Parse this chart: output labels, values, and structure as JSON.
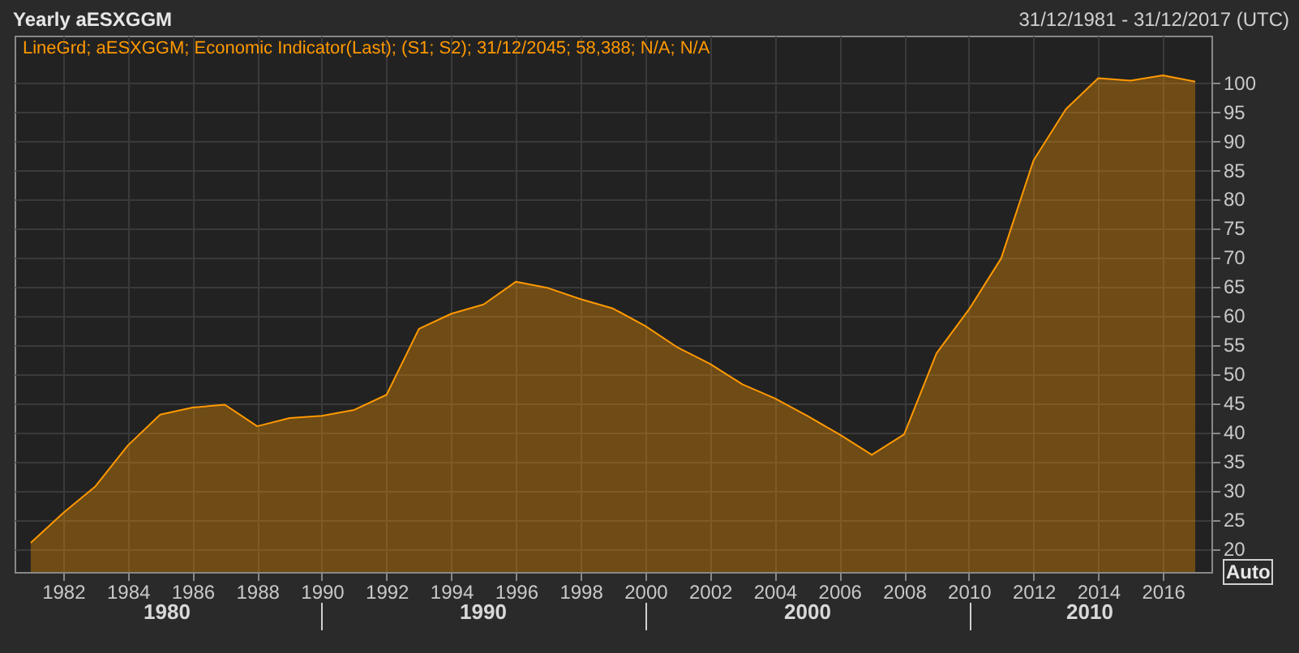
{
  "chart_data": {
    "type": "area",
    "title": "Yearly aESXGGM",
    "subtitle": "31/12/1981 - 31/12/2017 (UTC)",
    "annotations": [
      "Auto",
      "1980",
      "1990",
      "2000",
      "2010"
    ],
    "x": [
      1981,
      1982,
      1983,
      1984,
      1985,
      1986,
      1987,
      1988,
      1989,
      1990,
      1991,
      1992,
      1993,
      1994,
      1995,
      1996,
      1997,
      1998,
      1999,
      2000,
      2001,
      2002,
      2003,
      2004,
      2005,
      2006,
      2007,
      2008,
      2009,
      2010,
      2011,
      2012,
      2013,
      2014,
      2015,
      2016,
      2017
    ],
    "series": [
      {
        "name": "LineGrd; aESXGGM; Economic Indicator(Last); (S1; S2); 31/12/2045; 58,388; N/A; N/A",
        "color": "#ff9900",
        "values": [
          21,
          26.1,
          30.7,
          37.7,
          43.0,
          44.2,
          44.7,
          41.0,
          42.4,
          42.8,
          43.8,
          46.4,
          57.7,
          60.3,
          61.9,
          65.8,
          64.7,
          62.8,
          61.2,
          58.2,
          54.5,
          51.7,
          48.2,
          45.8,
          42.8,
          39.6,
          36.1,
          39.6,
          53.5,
          61.0,
          69.8,
          86.6,
          95.4,
          100.7,
          100.3,
          101.2,
          100.1
        ]
      }
    ],
    "xlim": [
      1980.5,
      2017.5
    ],
    "xticks": [
      1982,
      1984,
      1986,
      1988,
      1990,
      1992,
      1994,
      1996,
      1998,
      2000,
      2002,
      2004,
      2006,
      2008,
      2010,
      2012,
      2014,
      2016
    ],
    "ylim": [
      16,
      108
    ],
    "yticks": [
      20,
      25,
      30,
      35,
      40,
      45,
      50,
      55,
      60,
      65,
      70,
      75,
      80,
      85,
      90,
      95,
      100
    ],
    "grid": true,
    "legend": "top left"
  }
}
